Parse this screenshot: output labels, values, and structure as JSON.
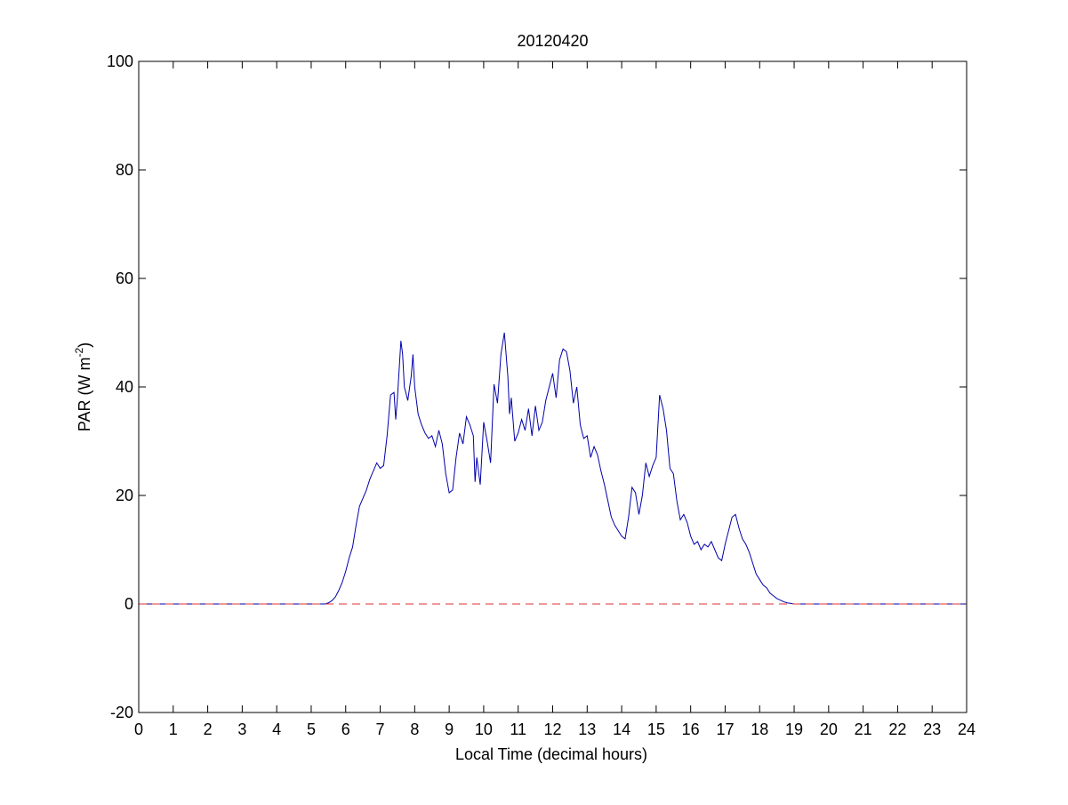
{
  "chart_data": {
    "type": "line",
    "title": "20120420",
    "xlabel": "Local Time (decimal hours)",
    "ylabel": {
      "main": "PAR (W m",
      "superscript": "-2",
      "close": ")"
    },
    "xlim": [
      0,
      24
    ],
    "ylim": [
      -20,
      100
    ],
    "xticks": [
      0,
      1,
      2,
      3,
      4,
      5,
      6,
      7,
      8,
      9,
      10,
      11,
      12,
      13,
      14,
      15,
      16,
      17,
      18,
      19,
      20,
      21,
      22,
      23,
      24
    ],
    "yticks": [
      -20,
      0,
      20,
      40,
      60,
      80,
      100
    ],
    "grid": false,
    "legend": "none",
    "series": [
      {
        "color": "#0000aa",
        "style": "solid",
        "points": [
          [
            0,
            0
          ],
          [
            5.4,
            0
          ],
          [
            5.5,
            0.2
          ],
          [
            5.6,
            0.6
          ],
          [
            5.7,
            1.3
          ],
          [
            5.8,
            2.5
          ],
          [
            5.9,
            4.0
          ],
          [
            6.0,
            6.0
          ],
          [
            6.1,
            8.5
          ],
          [
            6.2,
            10.5
          ],
          [
            6.3,
            14.5
          ],
          [
            6.4,
            18.0
          ],
          [
            6.5,
            19.5
          ],
          [
            6.6,
            21.0
          ],
          [
            6.7,
            23.0
          ],
          [
            6.8,
            24.5
          ],
          [
            6.9,
            26.0
          ],
          [
            7.0,
            25.0
          ],
          [
            7.1,
            25.5
          ],
          [
            7.2,
            31.0
          ],
          [
            7.3,
            38.5
          ],
          [
            7.4,
            39.0
          ],
          [
            7.45,
            34.0
          ],
          [
            7.5,
            38.0
          ],
          [
            7.6,
            48.5
          ],
          [
            7.65,
            46.0
          ],
          [
            7.7,
            40.0
          ],
          [
            7.8,
            37.5
          ],
          [
            7.9,
            42.0
          ],
          [
            7.95,
            46.0
          ],
          [
            8.0,
            40.0
          ],
          [
            8.1,
            35.0
          ],
          [
            8.2,
            33.0
          ],
          [
            8.3,
            31.5
          ],
          [
            8.4,
            30.5
          ],
          [
            8.5,
            31.0
          ],
          [
            8.6,
            29.0
          ],
          [
            8.7,
            32.0
          ],
          [
            8.8,
            29.5
          ],
          [
            8.9,
            24.0
          ],
          [
            9.0,
            20.5
          ],
          [
            9.1,
            21.0
          ],
          [
            9.2,
            27.0
          ],
          [
            9.3,
            31.5
          ],
          [
            9.4,
            29.5
          ],
          [
            9.5,
            34.5
          ],
          [
            9.6,
            33.0
          ],
          [
            9.7,
            31.0
          ],
          [
            9.75,
            22.5
          ],
          [
            9.8,
            27.0
          ],
          [
            9.9,
            22.0
          ],
          [
            10.0,
            33.5
          ],
          [
            10.1,
            30.0
          ],
          [
            10.2,
            26.0
          ],
          [
            10.3,
            40.5
          ],
          [
            10.4,
            37.0
          ],
          [
            10.5,
            46.0
          ],
          [
            10.6,
            50.0
          ],
          [
            10.7,
            42.0
          ],
          [
            10.75,
            35.0
          ],
          [
            10.8,
            38.0
          ],
          [
            10.9,
            30.0
          ],
          [
            11.0,
            31.5
          ],
          [
            11.1,
            34.0
          ],
          [
            11.2,
            32.0
          ],
          [
            11.3,
            36.0
          ],
          [
            11.4,
            31.0
          ],
          [
            11.5,
            36.5
          ],
          [
            11.6,
            32.0
          ],
          [
            11.7,
            33.5
          ],
          [
            11.8,
            37.5
          ],
          [
            11.9,
            40.0
          ],
          [
            12.0,
            42.5
          ],
          [
            12.1,
            38.0
          ],
          [
            12.2,
            45.0
          ],
          [
            12.3,
            47.0
          ],
          [
            12.4,
            46.5
          ],
          [
            12.5,
            43.0
          ],
          [
            12.6,
            37.0
          ],
          [
            12.7,
            40.0
          ],
          [
            12.8,
            33.0
          ],
          [
            12.9,
            30.5
          ],
          [
            13.0,
            31.0
          ],
          [
            13.1,
            27.0
          ],
          [
            13.2,
            29.0
          ],
          [
            13.3,
            27.5
          ],
          [
            13.4,
            24.5
          ],
          [
            13.5,
            22.0
          ],
          [
            13.6,
            19.0
          ],
          [
            13.7,
            16.0
          ],
          [
            13.8,
            14.5
          ],
          [
            13.9,
            13.5
          ],
          [
            14.0,
            12.5
          ],
          [
            14.1,
            12.0
          ],
          [
            14.2,
            16.0
          ],
          [
            14.3,
            21.5
          ],
          [
            14.4,
            20.5
          ],
          [
            14.5,
            16.5
          ],
          [
            14.6,
            20.0
          ],
          [
            14.7,
            26.0
          ],
          [
            14.8,
            23.5
          ],
          [
            14.9,
            25.5
          ],
          [
            15.0,
            27.0
          ],
          [
            15.1,
            38.5
          ],
          [
            15.2,
            36.0
          ],
          [
            15.3,
            32.0
          ],
          [
            15.4,
            25.0
          ],
          [
            15.5,
            24.0
          ],
          [
            15.6,
            19.0
          ],
          [
            15.7,
            15.5
          ],
          [
            15.8,
            16.5
          ],
          [
            15.9,
            15.0
          ],
          [
            16.0,
            12.5
          ],
          [
            16.1,
            11.0
          ],
          [
            16.2,
            11.5
          ],
          [
            16.3,
            10.0
          ],
          [
            16.4,
            11.0
          ],
          [
            16.5,
            10.5
          ],
          [
            16.6,
            11.5
          ],
          [
            16.7,
            10.0
          ],
          [
            16.8,
            8.5
          ],
          [
            16.9,
            8.0
          ],
          [
            17.0,
            11.0
          ],
          [
            17.1,
            13.5
          ],
          [
            17.2,
            16.0
          ],
          [
            17.3,
            16.5
          ],
          [
            17.4,
            14.0
          ],
          [
            17.5,
            12.0
          ],
          [
            17.6,
            11.0
          ],
          [
            17.7,
            9.5
          ],
          [
            17.8,
            7.5
          ],
          [
            17.9,
            5.5
          ],
          [
            18.0,
            4.5
          ],
          [
            18.1,
            3.5
          ],
          [
            18.2,
            3.0
          ],
          [
            18.3,
            2.0
          ],
          [
            18.4,
            1.5
          ],
          [
            18.5,
            1.0
          ],
          [
            18.6,
            0.7
          ],
          [
            18.7,
            0.4
          ],
          [
            18.8,
            0.2
          ],
          [
            19.0,
            0
          ],
          [
            24,
            0
          ]
        ]
      },
      {
        "color": "#dd3333",
        "style": "dashed",
        "points": [
          [
            0,
            0
          ],
          [
            24,
            0
          ]
        ]
      }
    ]
  }
}
